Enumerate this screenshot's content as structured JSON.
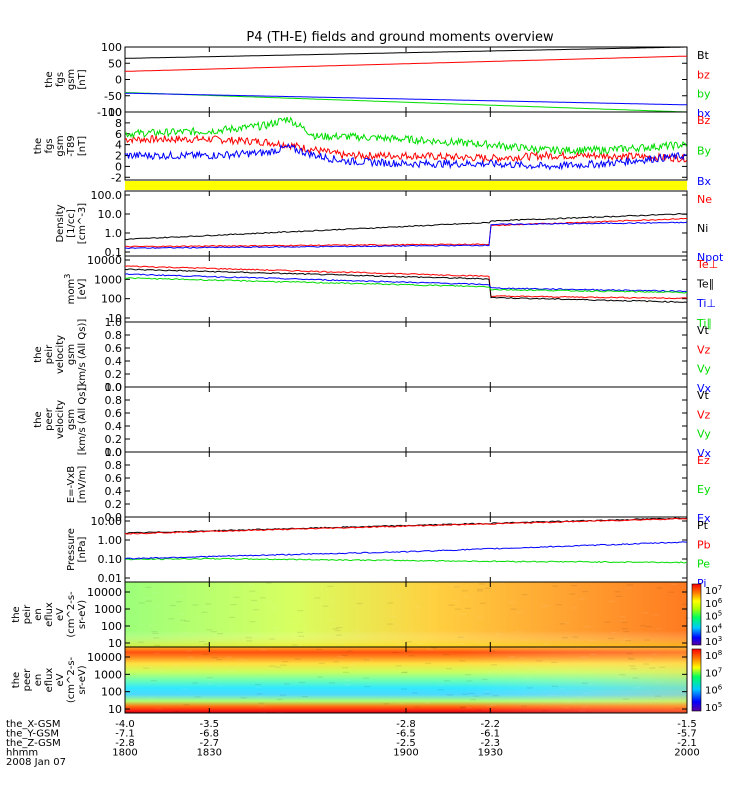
{
  "title": "P4 (TH-E) fields and ground moments overview",
  "chart_data": [
    {
      "type": "line",
      "ylabel": [
        "the",
        "fgs",
        "gsm",
        "[nT]"
      ],
      "yticks": [
        "100",
        "50",
        "0",
        "-50",
        "-100"
      ],
      "ylim": [
        -100,
        100
      ],
      "x": [
        1800,
        2000
      ],
      "series": [
        {
          "name": "Bt",
          "color": "#000000",
          "values": [
            65,
            100
          ]
        },
        {
          "name": "bz",
          "color": "#ff0000",
          "values": [
            25,
            72
          ]
        },
        {
          "name": "by",
          "color": "#00dd00",
          "values": [
            -40,
            -100
          ]
        },
        {
          "name": "bx",
          "color": "#0000ff",
          "values": [
            -42,
            -78
          ]
        }
      ]
    },
    {
      "type": "line",
      "ylabel": [
        "the",
        "fgs",
        "gsm",
        "-T89",
        "[nT]"
      ],
      "yticks": [
        "10",
        "8",
        "6",
        "4",
        "2",
        "0",
        "-2"
      ],
      "ylim": [
        -2.5,
        10
      ],
      "series": [
        {
          "name": "Bz",
          "color": "#ff0000",
          "x": [
            1800,
            1830,
            1850,
            1858,
            1868,
            1878,
            1900,
            1930,
            1950,
            1970,
            2000
          ],
          "values": [
            5,
            5,
            4.5,
            4,
            3,
            2,
            2,
            1.5,
            2,
            2,
            1.5
          ]
        },
        {
          "name": "By",
          "color": "#00dd00",
          "x": [
            1800,
            1830,
            1850,
            1858,
            1868,
            1878,
            1900,
            1930,
            1950,
            1970,
            2000
          ],
          "values": [
            6,
            6.5,
            7.5,
            8.8,
            5.5,
            5.5,
            5,
            4,
            3,
            3,
            4
          ]
        },
        {
          "name": "Bx",
          "color": "#0000ff",
          "x": [
            1800,
            1830,
            1850,
            1858,
            1868,
            1878,
            1900,
            1930,
            1950,
            1970,
            2000
          ],
          "values": [
            2,
            2,
            2.5,
            3.5,
            2,
            1,
            0.5,
            0.5,
            0,
            0.5,
            2
          ]
        }
      ]
    },
    {
      "type": "line",
      "ylabel": [
        "Density",
        "[1/cc]",
        "[cm^-3]"
      ],
      "yticks": [
        "100.0",
        "10.0",
        "1.0",
        "0.1"
      ],
      "ylog": true,
      "ylim": [
        0.1,
        200
      ],
      "series": [
        {
          "name": "Ne",
          "color": "#ff0000",
          "x": [
            1800,
            1930,
            1930.1,
            2000
          ],
          "values": [
            0.3,
            0.4,
            3.5,
            8
          ]
        },
        {
          "name": "Ni",
          "color": "#000000",
          "x": [
            1800,
            1930,
            1930.1,
            2000
          ],
          "values": [
            0.7,
            5,
            6,
            14
          ]
        },
        {
          "name": "Npot",
          "color": "#0000ff",
          "x": [
            1800,
            1930,
            1930.1,
            2000
          ],
          "values": [
            0.25,
            0.35,
            4,
            5
          ]
        }
      ]
    },
    {
      "type": "line",
      "ylabel": [
        "mom",
        "[eV]"
      ],
      "ylabel_sup": "3",
      "yticks": [
        "10000",
        "1000",
        "100",
        "10"
      ],
      "ylog": true,
      "ylim": [
        10,
        10000
      ],
      "series": [
        {
          "name": "Te⊥",
          "color": "#ff0000",
          "x": [
            1800,
            1930,
            1930.1,
            2000
          ],
          "values": [
            3500,
            1200,
            150,
            120
          ]
        },
        {
          "name": "Te∥",
          "color": "#000000",
          "x": [
            1800,
            1930,
            1930.1,
            2000
          ],
          "values": [
            2500,
            900,
            130,
            80
          ]
        },
        {
          "name": "Ti⊥",
          "color": "#0000ff",
          "x": [
            1800,
            1930,
            1930.1,
            2000
          ],
          "values": [
            1500,
            500,
            350,
            250
          ]
        },
        {
          "name": "Ti∥",
          "color": "#00dd00",
          "x": [
            1800,
            1930,
            1930.1,
            2000
          ],
          "values": [
            1000,
            400,
            300,
            220
          ]
        }
      ]
    },
    {
      "type": "line",
      "ylabel": [
        "the",
        "peir",
        "velocity",
        "gsm",
        "[km/s (All Qs)]"
      ],
      "yticks": [
        "1.0",
        "0.8",
        "0.6",
        "0.4",
        "0.2",
        "0.0"
      ],
      "ylim": [
        0,
        1
      ],
      "series": [
        {
          "name": "Vt",
          "color": "#000000",
          "values": []
        },
        {
          "name": "Vz",
          "color": "#ff0000",
          "values": []
        },
        {
          "name": "Vy",
          "color": "#00dd00",
          "values": []
        },
        {
          "name": "Vx",
          "color": "#0000ff",
          "values": []
        }
      ]
    },
    {
      "type": "line",
      "ylabel": [
        "the",
        "peer",
        "velocity",
        "gsm",
        "[km/s (All Qs)]"
      ],
      "yticks": [
        "1.0",
        "0.8",
        "0.6",
        "0.4",
        "0.2",
        "0.0"
      ],
      "ylim": [
        0,
        1
      ],
      "series": [
        {
          "name": "Vt",
          "color": "#000000",
          "values": []
        },
        {
          "name": "Vz",
          "color": "#ff0000",
          "values": []
        },
        {
          "name": "Vy",
          "color": "#00dd00",
          "values": []
        },
        {
          "name": "Vx",
          "color": "#0000ff",
          "values": []
        }
      ]
    },
    {
      "type": "line",
      "ylabel": [
        "E=-VxB",
        "[mV/m]"
      ],
      "yticks": [
        "1.0",
        "0.8",
        "0.6",
        "0.4",
        "0.2",
        "0.0"
      ],
      "ylim": [
        0,
        1
      ],
      "series": [
        {
          "name": "Ez",
          "color": "#ff0000",
          "values": []
        },
        {
          "name": "Ey",
          "color": "#00dd00",
          "values": []
        },
        {
          "name": "Ex",
          "color": "#0000ff",
          "values": []
        }
      ]
    },
    {
      "type": "line",
      "ylabel": [
        "Pressure",
        "[nPa]"
      ],
      "yticks": [
        "10.00",
        "1.00",
        "0.10",
        "0.01"
      ],
      "ylog": true,
      "ylim": [
        0.01,
        10
      ],
      "series": [
        {
          "name": "Pt",
          "color": "#000000",
          "x": [
            1800,
            2000
          ],
          "values": [
            1.8,
            9
          ]
        },
        {
          "name": "Pb",
          "color": "#ff0000",
          "x": [
            1800,
            2000
          ],
          "values": [
            1.7,
            8.5
          ]
        },
        {
          "name": "Pe",
          "color": "#00dd00",
          "x": [
            1800,
            1830,
            1930,
            2000
          ],
          "values": [
            0.11,
            0.12,
            0.09,
            0.08
          ]
        },
        {
          "name": "Pi",
          "color": "#0000ff",
          "x": [
            1800,
            1900,
            2000
          ],
          "values": [
            0.12,
            0.25,
            0.7
          ]
        }
      ]
    },
    {
      "type": "heatmap",
      "ylabel": [
        "the",
        "peir",
        "en",
        "eflux",
        "eV",
        "(cm^2-s-",
        "sr-eV)"
      ],
      "yticks": [
        "10000",
        "1000",
        "100",
        "10"
      ],
      "ylog": true,
      "colorbar_ticks": [
        "10^7",
        "10^6",
        "10^5",
        "10^4",
        "10^3"
      ]
    },
    {
      "type": "heatmap",
      "ylabel": [
        "the",
        "peer",
        "en",
        "eflux",
        "eV",
        "(cm^2-s-",
        "sr-eV)"
      ],
      "yticks": [
        "10000",
        "1000",
        "100",
        "10"
      ],
      "ylog": true,
      "colorbar_ticks": [
        "10^8",
        "10^7",
        "10^6",
        "10^5"
      ]
    }
  ],
  "xaxis": {
    "rows": [
      {
        "label": "the_X-GSM",
        "values": [
          "-4.0",
          "-3.5",
          "-2.8",
          "-2.2",
          "-1.5"
        ]
      },
      {
        "label": "the_Y-GSM",
        "values": [
          "-7.1",
          "-6.8",
          "-6.5",
          "-6.1",
          "-5.7"
        ]
      },
      {
        "label": "the_Z-GSM",
        "values": [
          "-2.8",
          "-2.7",
          "-2.5",
          "-2.3",
          "-2.1"
        ]
      },
      {
        "label": "hhmm",
        "values": [
          "1800",
          "1830",
          "1900",
          "1930",
          "2000"
        ]
      }
    ],
    "date": "2008 Jan 07"
  }
}
